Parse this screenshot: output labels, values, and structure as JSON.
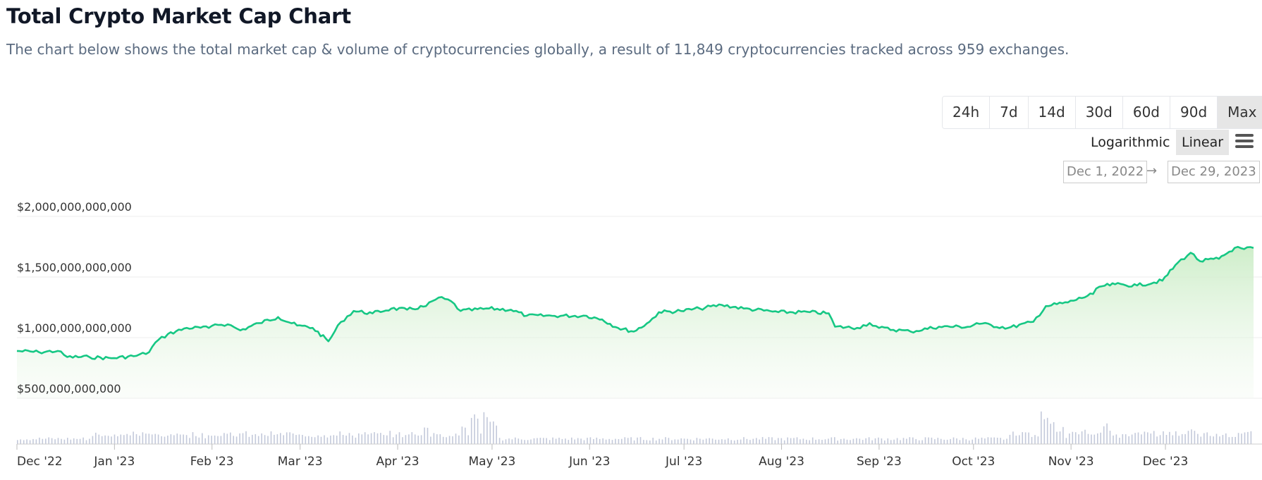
{
  "header": {
    "title": "Total Crypto Market Cap Chart",
    "subtitle": "The chart below shows the total market cap & volume of cryptocurrencies globally, a result of 11,849 cryptocurrencies tracked across 959 exchanges."
  },
  "controls": {
    "ranges": [
      "24h",
      "7d",
      "14d",
      "30d",
      "60d",
      "90d",
      "Max"
    ],
    "active_range": "Max",
    "scale_log": "Logarithmic",
    "scale_linear": "Linear",
    "active_scale": "Linear",
    "date_from": "Dec 1, 2022",
    "date_arrow": "→",
    "date_to": "Dec 29, 2023"
  },
  "colors": {
    "line": "#16c784",
    "fill_top": "#c9ecc4",
    "volume": "#c3c9da",
    "grid": "#eeeeee"
  },
  "chart_data": {
    "type": "area",
    "title": "",
    "xlabel": "",
    "ylabel": "",
    "x_range": [
      "2022-12-01",
      "2023-12-29"
    ],
    "y_ticks": [
      {
        "value": 500000000000,
        "label": "$500,000,000,000"
      },
      {
        "value": 1000000000000,
        "label": "$1,000,000,000,000"
      },
      {
        "value": 1500000000000,
        "label": "$1,500,000,000,000"
      },
      {
        "value": 2000000000000,
        "label": "$2,000,000,000,000"
      }
    ],
    "x_ticks": [
      {
        "date": "2022-12-01",
        "label": "Dec '22"
      },
      {
        "date": "2023-01-01",
        "label": "Jan '23"
      },
      {
        "date": "2023-02-01",
        "label": "Feb '23"
      },
      {
        "date": "2023-03-01",
        "label": "Mar '23"
      },
      {
        "date": "2023-04-01",
        "label": "Apr '23"
      },
      {
        "date": "2023-05-01",
        "label": "May '23"
      },
      {
        "date": "2023-06-01",
        "label": "Jun '23"
      },
      {
        "date": "2023-07-01",
        "label": "Jul '23"
      },
      {
        "date": "2023-08-01",
        "label": "Aug '23"
      },
      {
        "date": "2023-09-01",
        "label": "Sep '23"
      },
      {
        "date": "2023-10-01",
        "label": "Oct '23"
      },
      {
        "date": "2023-11-01",
        "label": "Nov '23"
      },
      {
        "date": "2023-12-01",
        "label": "Dec '23"
      }
    ],
    "series": [
      {
        "values_unit": "USD",
        "points": [
          [
            "2022-12-01",
            890000000000
          ],
          [
            "2022-12-08",
            880000000000
          ],
          [
            "2022-12-14",
            890000000000
          ],
          [
            "2022-12-17",
            840000000000
          ],
          [
            "2022-12-24",
            840000000000
          ],
          [
            "2022-12-31",
            830000000000
          ],
          [
            "2023-01-08",
            850000000000
          ],
          [
            "2023-01-12",
            880000000000
          ],
          [
            "2023-01-14",
            960000000000
          ],
          [
            "2023-01-18",
            1030000000000
          ],
          [
            "2023-01-24",
            1080000000000
          ],
          [
            "2023-01-31",
            1080000000000
          ],
          [
            "2023-02-02",
            1110000000000
          ],
          [
            "2023-02-06",
            1110000000000
          ],
          [
            "2023-02-10",
            1060000000000
          ],
          [
            "2023-02-16",
            1120000000000
          ],
          [
            "2023-02-22",
            1170000000000
          ],
          [
            "2023-02-28",
            1100000000000
          ],
          [
            "2023-03-05",
            1080000000000
          ],
          [
            "2023-03-10",
            970000000000
          ],
          [
            "2023-03-14",
            1130000000000
          ],
          [
            "2023-03-18",
            1220000000000
          ],
          [
            "2023-03-24",
            1200000000000
          ],
          [
            "2023-03-30",
            1240000000000
          ],
          [
            "2023-04-04",
            1230000000000
          ],
          [
            "2023-04-10",
            1260000000000
          ],
          [
            "2023-04-14",
            1330000000000
          ],
          [
            "2023-04-18",
            1300000000000
          ],
          [
            "2023-04-21",
            1220000000000
          ],
          [
            "2023-04-30",
            1240000000000
          ],
          [
            "2023-05-07",
            1230000000000
          ],
          [
            "2023-05-12",
            1180000000000
          ],
          [
            "2023-05-20",
            1180000000000
          ],
          [
            "2023-05-31",
            1180000000000
          ],
          [
            "2023-06-05",
            1150000000000
          ],
          [
            "2023-06-10",
            1080000000000
          ],
          [
            "2023-06-15",
            1050000000000
          ],
          [
            "2023-06-20",
            1130000000000
          ],
          [
            "2023-06-23",
            1210000000000
          ],
          [
            "2023-06-30",
            1220000000000
          ],
          [
            "2023-07-06",
            1240000000000
          ],
          [
            "2023-07-13",
            1270000000000
          ],
          [
            "2023-07-20",
            1240000000000
          ],
          [
            "2023-07-31",
            1210000000000
          ],
          [
            "2023-08-10",
            1210000000000
          ],
          [
            "2023-08-16",
            1200000000000
          ],
          [
            "2023-08-18",
            1090000000000
          ],
          [
            "2023-08-25",
            1080000000000
          ],
          [
            "2023-08-29",
            1120000000000
          ],
          [
            "2023-09-01",
            1080000000000
          ],
          [
            "2023-09-11",
            1050000000000
          ],
          [
            "2023-09-20",
            1090000000000
          ],
          [
            "2023-09-30",
            1090000000000
          ],
          [
            "2023-10-02",
            1120000000000
          ],
          [
            "2023-10-12",
            1080000000000
          ],
          [
            "2023-10-20",
            1130000000000
          ],
          [
            "2023-10-24",
            1260000000000
          ],
          [
            "2023-10-31",
            1290000000000
          ],
          [
            "2023-11-08",
            1360000000000
          ],
          [
            "2023-11-10",
            1420000000000
          ],
          [
            "2023-11-15",
            1440000000000
          ],
          [
            "2023-11-22",
            1430000000000
          ],
          [
            "2023-11-30",
            1470000000000
          ],
          [
            "2023-12-05",
            1620000000000
          ],
          [
            "2023-12-09",
            1700000000000
          ],
          [
            "2023-12-12",
            1630000000000
          ],
          [
            "2023-12-18",
            1650000000000
          ],
          [
            "2023-12-23",
            1740000000000
          ],
          [
            "2023-12-26",
            1730000000000
          ],
          [
            "2023-12-29",
            1740000000000
          ]
        ]
      }
    ],
    "volume_bars": 395,
    "grid": true,
    "legend": "none"
  }
}
